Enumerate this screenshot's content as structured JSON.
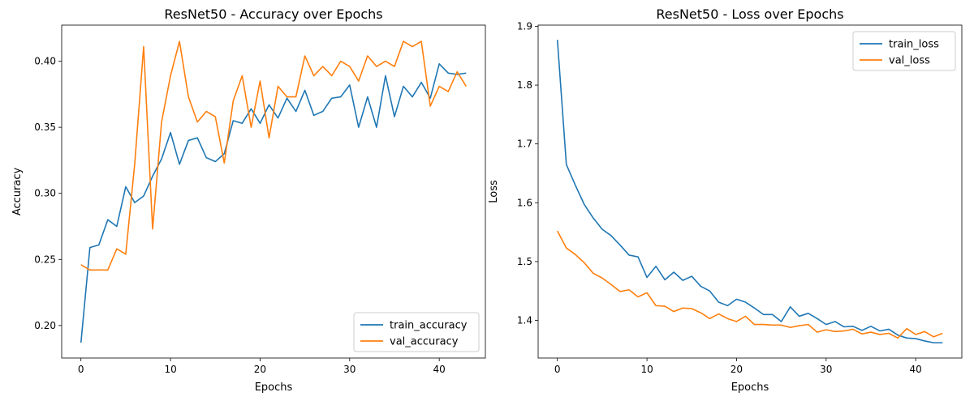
{
  "colors": {
    "train": "#1f77b4",
    "val": "#ff7f0e"
  },
  "chart_data": [
    {
      "type": "line",
      "title": "ResNet50 - Accuracy over Epochs",
      "xlabel": "Epochs",
      "ylabel": "Accuracy",
      "xlim": [
        -2.15,
        45.15
      ],
      "ylim": [
        0.1754,
        0.4273
      ],
      "xticks": [
        0,
        10,
        20,
        30,
        40
      ],
      "yticks": [
        0.2,
        0.25,
        0.3,
        0.35,
        0.4
      ],
      "ytick_labels": [
        "0.20",
        "0.25",
        "0.30",
        "0.35",
        "0.40"
      ],
      "grid": false,
      "legend_position": "lower-right",
      "x": [
        0,
        1,
        2,
        3,
        4,
        5,
        6,
        7,
        8,
        9,
        10,
        11,
        12,
        13,
        14,
        15,
        16,
        17,
        18,
        19,
        20,
        21,
        22,
        23,
        24,
        25,
        26,
        27,
        28,
        29,
        30,
        31,
        32,
        33,
        34,
        35,
        36,
        37,
        38,
        39,
        40,
        41,
        42,
        43
      ],
      "series": [
        {
          "name": "train_accuracy",
          "values": [
            0.187,
            0.259,
            0.261,
            0.28,
            0.275,
            0.305,
            0.293,
            0.298,
            0.313,
            0.326,
            0.346,
            0.322,
            0.34,
            0.342,
            0.327,
            0.324,
            0.33,
            0.355,
            0.353,
            0.364,
            0.353,
            0.367,
            0.357,
            0.372,
            0.362,
            0.378,
            0.359,
            0.362,
            0.372,
            0.373,
            0.382,
            0.35,
            0.373,
            0.35,
            0.389,
            0.358,
            0.381,
            0.373,
            0.384,
            0.372,
            0.398,
            0.391,
            0.39,
            0.391
          ]
        },
        {
          "name": "val_accuracy",
          "values": [
            0.246,
            0.242,
            0.242,
            0.242,
            0.258,
            0.254,
            0.322,
            0.411,
            0.273,
            0.354,
            0.389,
            0.415,
            0.373,
            0.354,
            0.362,
            0.358,
            0.323,
            0.37,
            0.389,
            0.35,
            0.385,
            0.342,
            0.381,
            0.373,
            0.373,
            0.404,
            0.389,
            0.396,
            0.389,
            0.4,
            0.396,
            0.385,
            0.404,
            0.396,
            0.4,
            0.396,
            0.415,
            0.411,
            0.415,
            0.366,
            0.381,
            0.377,
            0.392,
            0.381
          ]
        }
      ]
    },
    {
      "type": "line",
      "title": "ResNet50 - Loss over Epochs",
      "xlabel": "Epochs",
      "ylabel": "Loss",
      "xlim": [
        -2.15,
        45.15
      ],
      "ylim": [
        1.336,
        1.902
      ],
      "xticks": [
        0,
        10,
        20,
        30,
        40
      ],
      "yticks": [
        1.4,
        1.5,
        1.6,
        1.7,
        1.8,
        1.9
      ],
      "ytick_labels": [
        "1.4",
        "1.5",
        "1.6",
        "1.7",
        "1.8",
        "1.9"
      ],
      "grid": false,
      "legend_position": "upper-right",
      "x": [
        0,
        1,
        2,
        3,
        4,
        5,
        6,
        7,
        8,
        9,
        10,
        11,
        12,
        13,
        14,
        15,
        16,
        17,
        18,
        19,
        20,
        21,
        22,
        23,
        24,
        25,
        26,
        27,
        28,
        29,
        30,
        31,
        32,
        33,
        34,
        35,
        36,
        37,
        38,
        39,
        40,
        41,
        42,
        43
      ],
      "series": [
        {
          "name": "train_loss",
          "values": [
            1.877,
            1.665,
            1.63,
            1.597,
            1.574,
            1.555,
            1.544,
            1.528,
            1.511,
            1.508,
            1.473,
            1.492,
            1.469,
            1.482,
            1.468,
            1.475,
            1.458,
            1.45,
            1.431,
            1.425,
            1.436,
            1.431,
            1.421,
            1.41,
            1.41,
            1.398,
            1.423,
            1.407,
            1.412,
            1.403,
            1.393,
            1.398,
            1.389,
            1.39,
            1.383,
            1.39,
            1.382,
            1.385,
            1.375,
            1.37,
            1.369,
            1.365,
            1.362,
            1.362
          ]
        },
        {
          "name": "val_loss",
          "values": [
            1.552,
            1.523,
            1.512,
            1.498,
            1.48,
            1.472,
            1.461,
            1.449,
            1.452,
            1.44,
            1.447,
            1.425,
            1.424,
            1.415,
            1.421,
            1.42,
            1.413,
            1.403,
            1.411,
            1.403,
            1.398,
            1.407,
            1.393,
            1.393,
            1.392,
            1.392,
            1.388,
            1.391,
            1.393,
            1.38,
            1.384,
            1.381,
            1.382,
            1.385,
            1.377,
            1.38,
            1.376,
            1.378,
            1.37,
            1.386,
            1.376,
            1.381,
            1.372,
            1.378
          ]
        }
      ]
    }
  ]
}
